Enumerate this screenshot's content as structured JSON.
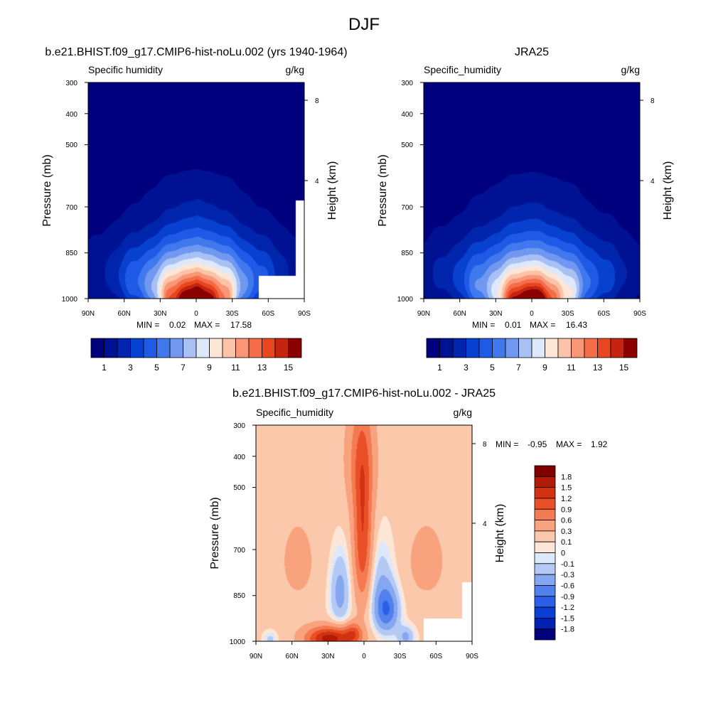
{
  "figure": {
    "title": "DJF"
  },
  "chart_data": [
    {
      "type": "heatmap",
      "title": "b.e21.BHIST.f09_g17.CMIP6-hist-noLu.002 (yrs 1940-1964)",
      "left_string": "Specific humidity",
      "right_string": "g/kg",
      "ylabel": "Pressure (mb)",
      "y2label": "Height (km)",
      "x_ticks": [
        "90N",
        "60N",
        "30N",
        "0",
        "30S",
        "60S",
        "90S"
      ],
      "y_ticks": [
        "300",
        "400",
        "500",
        "700",
        "850",
        "1000"
      ],
      "y2_ticks": [
        "8",
        "4"
      ],
      "xlim": [
        90,
        -90
      ],
      "ylim_mb": [
        1000,
        300
      ],
      "log_pressure_axis": true,
      "stats": {
        "min_label": "MIN =",
        "min": "0.02",
        "max_label": "MAX =",
        "max": "17.58"
      },
      "levels": [
        1,
        2,
        3,
        4,
        5,
        6,
        7,
        8,
        9,
        10,
        11,
        12,
        13,
        14,
        15
      ],
      "colorbar_labels": [
        "1",
        "3",
        "5",
        "7",
        "9",
        "11",
        "13",
        "15"
      ],
      "colorbar_orientation": "horizontal",
      "colors": [
        "#00007f",
        "#001294",
        "#0025ad",
        "#0840d0",
        "#1f5ae6",
        "#4078ee",
        "#7098f0",
        "#a8c0f4",
        "#dde8fa",
        "#fde6d6",
        "#fbc3a8",
        "#f89676",
        "#f46c48",
        "#e8461e",
        "#c42410",
        "#8a0000"
      ],
      "field": {
        "surface_peak_gkg": 17.58,
        "peak_lat": 0,
        "surface_halfwidth_deg": 43,
        "moist_top_mb": 380,
        "missing_box": {
          "lat": [
            -52,
            -90
          ],
          "p_mb": [
            880,
            1000
          ]
        },
        "missing_strip": {
          "lat": [
            -83,
            -90
          ],
          "p_mb": [
            580,
            1000
          ]
        }
      }
    },
    {
      "type": "heatmap",
      "title": "JRA25",
      "left_string": "Specific_humidity",
      "right_string": "g/kg",
      "ylabel": "Pressure (mb)",
      "y2label": "Height (km)",
      "x_ticks": [
        "90N",
        "60N",
        "30N",
        "0",
        "30S",
        "60S",
        "90S"
      ],
      "y_ticks": [
        "300",
        "400",
        "500",
        "700",
        "850",
        "1000"
      ],
      "y2_ticks": [
        "8",
        "4"
      ],
      "xlim": [
        90,
        -90
      ],
      "ylim_mb": [
        1000,
        300
      ],
      "log_pressure_axis": true,
      "stats": {
        "min_label": "MIN =",
        "min": "0.01",
        "max_label": "MAX =",
        "max": "16.43"
      },
      "levels": [
        1,
        2,
        3,
        4,
        5,
        6,
        7,
        8,
        9,
        10,
        11,
        12,
        13,
        14,
        15
      ],
      "colorbar_labels": [
        "1",
        "3",
        "5",
        "7",
        "9",
        "11",
        "13",
        "15"
      ],
      "colorbar_orientation": "horizontal",
      "colors": [
        "#00007f",
        "#001294",
        "#0025ad",
        "#0840d0",
        "#1f5ae6",
        "#4078ee",
        "#7098f0",
        "#a8c0f4",
        "#dde8fa",
        "#fde6d6",
        "#fbc3a8",
        "#f89676",
        "#f46c48",
        "#e8461e",
        "#c42410",
        "#8a0000"
      ],
      "field": {
        "surface_peak_gkg": 16.43,
        "peak_lat": 0,
        "surface_halfwidth_deg": 45,
        "moist_top_mb": 390
      }
    },
    {
      "type": "heatmap",
      "title": "b.e21.BHIST.f09_g17.CMIP6-hist-noLu.002 - JRA25",
      "left_string": "Specific_humidity",
      "right_string": "g/kg",
      "ylabel": "Pressure (mb)",
      "y2label": "Height (km)",
      "x_ticks": [
        "90N",
        "60N",
        "30N",
        "0",
        "30S",
        "60S",
        "90S"
      ],
      "y_ticks": [
        "300",
        "400",
        "500",
        "700",
        "850",
        "1000"
      ],
      "y2_ticks": [
        "8",
        "4"
      ],
      "xlim": [
        90,
        -90
      ],
      "ylim_mb": [
        1000,
        300
      ],
      "log_pressure_axis": true,
      "stats": {
        "min_label": "MIN =",
        "min": "-0.95",
        "max_label": "MAX =",
        "max": "1.92"
      },
      "levels": [
        -1.8,
        -1.5,
        -1.2,
        -0.9,
        -0.6,
        -0.3,
        -0.1,
        0,
        0.1,
        0.3,
        0.6,
        0.9,
        1.2,
        1.5,
        1.8
      ],
      "colorbar_labels": [
        "1.8",
        "1.5",
        "1.2",
        "0.9",
        "0.6",
        "0.3",
        "0.1",
        "0",
        "-0.1",
        "-0.3",
        "-0.6",
        "-0.9",
        "-1.2",
        "-1.5",
        "-1.8"
      ],
      "colorbar_orientation": "vertical",
      "colors": [
        "#00007f",
        "#0020b0",
        "#0a3fd6",
        "#2a5fe8",
        "#5280ec",
        "#85a6f0",
        "#b4c9f4",
        "#dde8fa",
        "#fde6d6",
        "#fbc8ab",
        "#f8a27e",
        "#f47a50",
        "#ea5028",
        "#d23212",
        "#b01a06",
        "#800000"
      ],
      "field": {
        "missing_box": {
          "lat": [
            -50,
            -90
          ],
          "p_mb": [
            880,
            1000
          ]
        },
        "missing_strip": {
          "lat": [
            -82,
            -90
          ],
          "p_mb": [
            720,
            1000
          ]
        }
      }
    }
  ]
}
